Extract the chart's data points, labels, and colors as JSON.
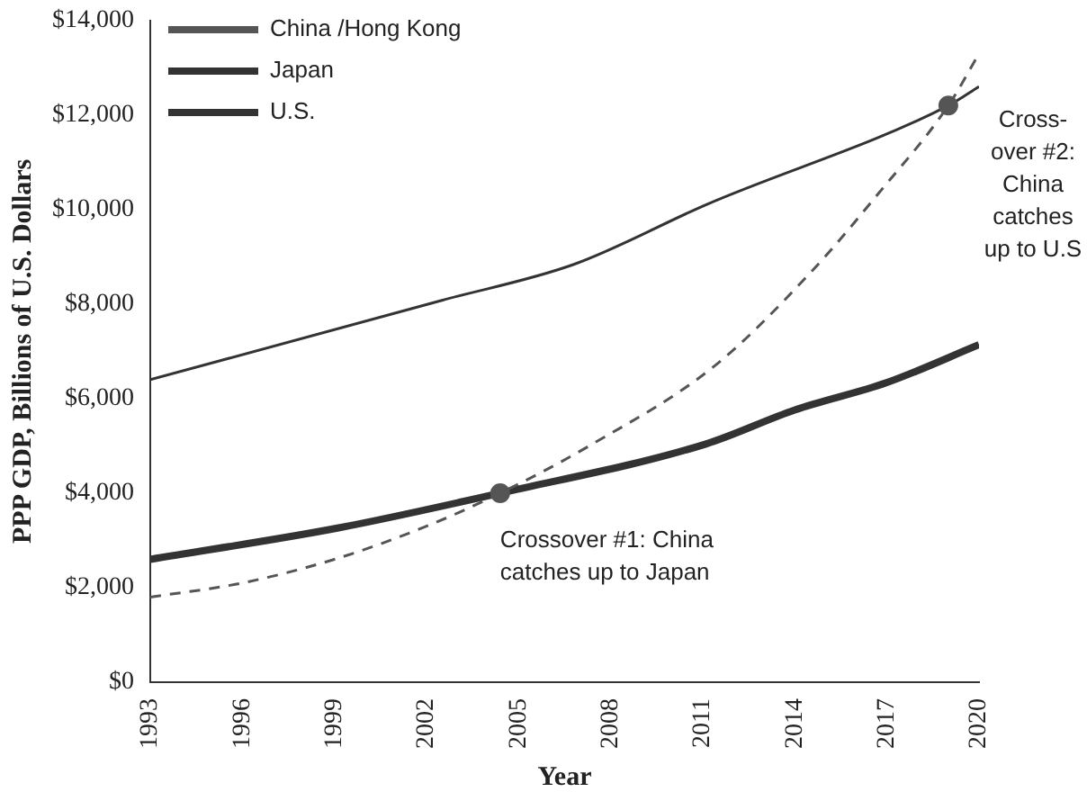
{
  "chart_data": {
    "type": "line",
    "xlabel": "Year",
    "ylabel": "PPP GDP, Billions of U.S. Dollars",
    "xlim": [
      1993,
      2020
    ],
    "xticks": [
      1993,
      1996,
      1999,
      2002,
      2005,
      2008,
      2011,
      2014,
      2017,
      2020
    ],
    "ylim": [
      0,
      14000
    ],
    "yticks": [
      {
        "value": 0,
        "label": "$0"
      },
      {
        "value": 2000,
        "label": "$2,000"
      },
      {
        "value": 4000,
        "label": "$4,000"
      },
      {
        "value": 6000,
        "label": "$6,000"
      },
      {
        "value": 8000,
        "label": "$8,000"
      },
      {
        "value": 10000,
        "label": "$10,000"
      },
      {
        "value": 12000,
        "label": "$12,000"
      },
      {
        "value": 14000,
        "label": "$14,000"
      }
    ],
    "grid": false,
    "legend": "top left",
    "marker": "none",
    "series": [
      {
        "name": "China /Hong Kong",
        "color": "#555555",
        "line_style": "dashed",
        "x": [
          1993,
          1996,
          1999,
          2002,
          2004.4,
          2007.3,
          2011.4,
          2014.5,
          2016.8,
          2019,
          2020
        ],
        "values": [
          1800,
          2100,
          2600,
          3300,
          4000,
          5000,
          6700,
          8660,
          10400,
          12200,
          13300
        ]
      },
      {
        "name": "Japan",
        "color": "#333333",
        "x": [
          1993,
          1999.1,
          2004.4,
          2011.1,
          2014,
          2017,
          2020
        ],
        "values": [
          2600,
          3260,
          4000,
          5040,
          5760,
          6340,
          7140
        ]
      },
      {
        "name": "U.S.",
        "color": "#333333",
        "x": [
          1993,
          2002.5,
          2006.8,
          2011.1,
          2019,
          2020
        ],
        "values": [
          6400,
          8080,
          8840,
          10100,
          12200,
          12600
        ]
      },
      {
        "type": "scatter",
        "marker": "circle",
        "color": "#555555",
        "x": [
          2004.4,
          2019
        ],
        "values": [
          4000,
          12200
        ]
      }
    ],
    "annotations": [
      {
        "text": "Crossover #1: China catches up to Japan",
        "x": 2004.4,
        "y": 4000
      },
      {
        "text": "Cross-over #2: China catches up to U.S",
        "x": 2019,
        "y": 12200
      }
    ]
  }
}
